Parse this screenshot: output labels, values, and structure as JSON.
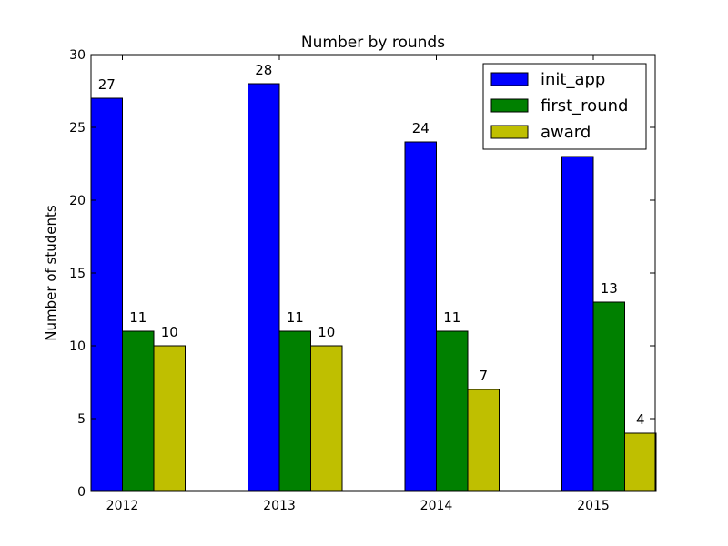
{
  "chart_data": {
    "type": "bar",
    "title": "Number by rounds",
    "xlabel": "",
    "ylabel": "Number of students",
    "categories": [
      "2012",
      "2013",
      "2014",
      "2015"
    ],
    "ylim": [
      0,
      30
    ],
    "yticks": [
      "0",
      "5",
      "10",
      "15",
      "20",
      "25",
      "30"
    ],
    "series": [
      {
        "name": "init_app",
        "color": "#0000ff",
        "values": [
          27,
          28,
          24,
          23
        ]
      },
      {
        "name": "first_round",
        "color": "#008000",
        "values": [
          11,
          11,
          11,
          13
        ]
      },
      {
        "name": "award",
        "color": "#bfbf00",
        "values": [
          10,
          10,
          7,
          4
        ]
      }
    ],
    "data_labels": [
      [
        "27",
        "28",
        "24",
        ""
      ],
      [
        "11",
        "11",
        "11",
        "13"
      ],
      [
        "10",
        "10",
        "7",
        "4"
      ]
    ],
    "legend_position": "top-right",
    "grid": false
  }
}
